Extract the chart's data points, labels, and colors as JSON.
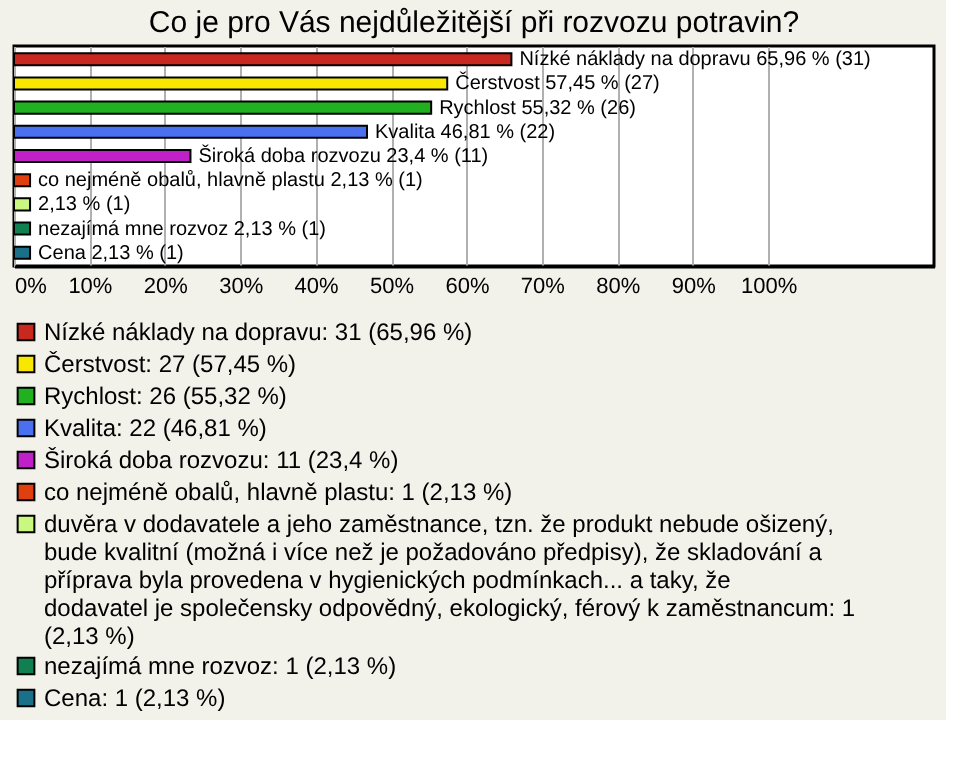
{
  "chart_data": {
    "type": "bar",
    "orientation": "horizontal",
    "title": "Co je pro Vás nejdůležitější při rozvozu potravin?",
    "categories": [
      null,
      null,
      null,
      null,
      null,
      null,
      null,
      null,
      null
    ],
    "series": [
      {
        "name": "Nízké náklady na dopravu: 31 (65,96 %)",
        "color": "#c8281e",
        "values": [
          65.96,
          null,
          null,
          null,
          null,
          null,
          null,
          null,
          null
        ],
        "value_labels": [
          "Nízké náklady na dopravu 65,96 % (31)",
          null,
          null,
          null,
          null,
          null,
          null,
          null,
          null
        ]
      },
      {
        "name": "Čerstvost: 27 (57,45 %)",
        "color": "#f8e800",
        "values": [
          null,
          57.45,
          null,
          null,
          null,
          null,
          null,
          null,
          null
        ],
        "value_labels": [
          null,
          "Čerstvost 57,45 % (27)",
          null,
          null,
          null,
          null,
          null,
          null,
          null
        ]
      },
      {
        "name": "Rychlost: 26 (55,32 %)",
        "color": "#20b020",
        "values": [
          null,
          null,
          55.32,
          null,
          null,
          null,
          null,
          null,
          null
        ],
        "value_labels": [
          null,
          null,
          "Rychlost 55,32 % (26)",
          null,
          null,
          null,
          null,
          null,
          null
        ]
      },
      {
        "name": "Kvalita: 22 (46,81 %)",
        "color": "#4a70f0",
        "values": [
          null,
          null,
          null,
          46.81,
          null,
          null,
          null,
          null,
          null
        ],
        "value_labels": [
          null,
          null,
          null,
          "Kvalita 46,81 % (22)",
          null,
          null,
          null,
          null,
          null
        ]
      },
      {
        "name": "Široká doba rozvozu: 11 (23,4 %)",
        "color": "#c020c8",
        "values": [
          null,
          null,
          null,
          null,
          23.4,
          null,
          null,
          null,
          null
        ],
        "value_labels": [
          null,
          null,
          null,
          null,
          "Široká doba rozvozu 23,4 % (11)",
          null,
          null,
          null,
          null
        ]
      },
      {
        "name": "co nejméně obalů, hlavně plastu: 1 (2,13 %)",
        "color": "#e04010",
        "values": [
          null,
          null,
          null,
          null,
          null,
          2.13,
          null,
          null,
          null
        ],
        "value_labels": [
          null,
          null,
          null,
          null,
          null,
          "co nejméně obalů, hlavně plastu 2,13 % (1)",
          null,
          null,
          null
        ]
      },
      {
        "name": "duvěra v dodavatele a jeho zaměstnance, tzn. že produkt nebude ošizený, bude kvalitní (možná i více než je požadováno předpisy), že skladování a příprava byla provedena v hygienických podmínkach... a taky, že dodavatel je společensky odpovědný, ekologický, férový k zaměstnancum: 1 (2,13 %)",
        "color": "#c8f880",
        "values": [
          null,
          null,
          null,
          null,
          null,
          null,
          2.13,
          null,
          null
        ],
        "value_labels": [
          null,
          null,
          null,
          null,
          null,
          null,
          "2,13 % (1)",
          null,
          null
        ]
      },
      {
        "name": "nezajímá mne rozvoz: 1 (2,13 %)",
        "color": "#108050",
        "values": [
          null,
          null,
          null,
          null,
          null,
          null,
          null,
          2.13,
          null
        ],
        "value_labels": [
          null,
          null,
          null,
          null,
          null,
          null,
          null,
          "nezajímá mne rozvoz 2,13 % (1)",
          null
        ]
      },
      {
        "name": "Cena: 1 (2,13 %)",
        "color": "#1a7088",
        "values": [
          null,
          null,
          null,
          null,
          null,
          null,
          null,
          null,
          2.13
        ],
        "value_labels": [
          null,
          null,
          null,
          null,
          null,
          null,
          null,
          null,
          "Cena 2,13 % (1)"
        ]
      }
    ],
    "xlim": [
      0,
      122
    ],
    "xticks": [
      {
        "value": 0,
        "label": "0%"
      },
      {
        "value": 10,
        "label": "10%"
      },
      {
        "value": 20,
        "label": "20%"
      },
      {
        "value": 30,
        "label": "30%"
      },
      {
        "value": 40,
        "label": "40%"
      },
      {
        "value": 50,
        "label": "50%"
      },
      {
        "value": 60,
        "label": "60%"
      },
      {
        "value": 70,
        "label": "70%"
      },
      {
        "value": 80,
        "label": "80%"
      },
      {
        "value": 90,
        "label": "90%"
      },
      {
        "value": 100,
        "label": "100%"
      }
    ],
    "grid": "x",
    "legend": "bottom",
    "tick_labels": "x"
  }
}
